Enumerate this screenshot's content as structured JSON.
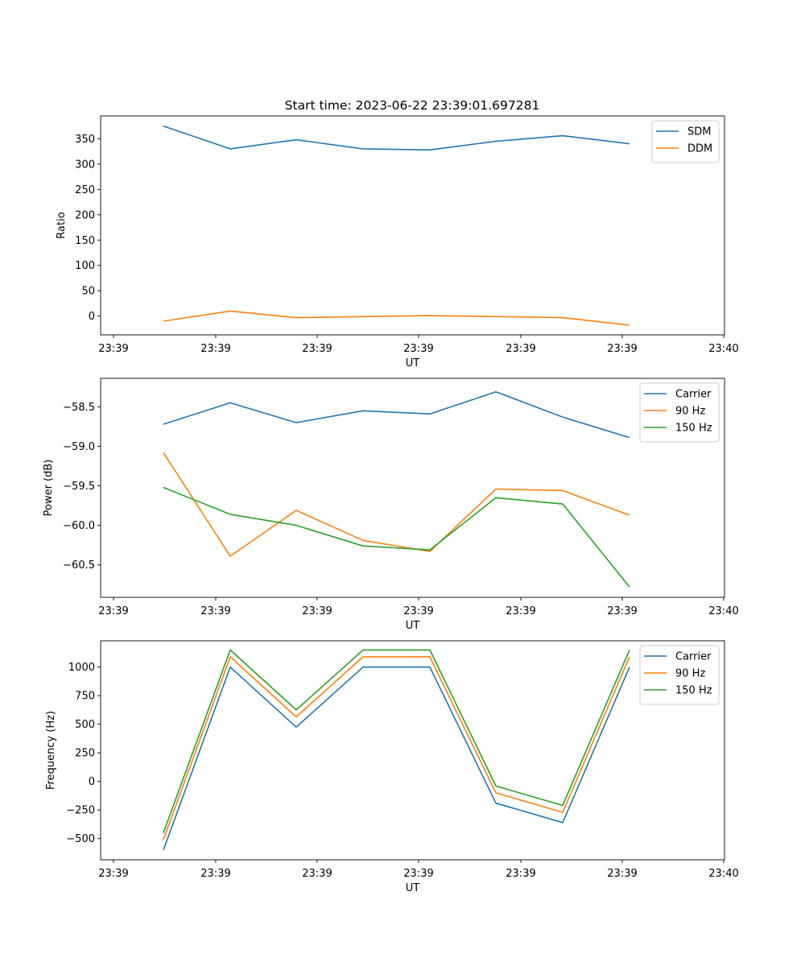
{
  "figure": {
    "title": "Start time: 2023-06-22 23:39:01.697281"
  },
  "chart_data": [
    {
      "type": "line",
      "title": "Start time: 2023-06-22 23:39:01.697281",
      "xlabel": "UT",
      "ylabel": "Ratio",
      "x_tick_labels": [
        "23:39",
        "23:39",
        "23:39",
        "23:39",
        "23:39",
        "23:39",
        "23:40"
      ],
      "y_ticks": [
        0,
        50,
        100,
        150,
        200,
        250,
        300,
        350
      ],
      "ylim": [
        -37,
        395
      ],
      "grid": false,
      "legend_position": "top-right",
      "series": [
        {
          "name": "SDM",
          "color": "#1f77b4",
          "values": [
            375,
            330,
            348,
            330,
            328,
            345,
            356,
            340
          ]
        },
        {
          "name": "DDM",
          "color": "#ff7f0e",
          "values": [
            -10,
            10,
            -3,
            -1,
            1,
            -1,
            -3,
            -18
          ]
        }
      ]
    },
    {
      "type": "line",
      "xlabel": "UT",
      "ylabel": "Power (dB)",
      "x_tick_labels": [
        "23:39",
        "23:39",
        "23:39",
        "23:39",
        "23:39",
        "23:39",
        "23:40"
      ],
      "y_ticks": [
        -60.5,
        -60.0,
        -59.5,
        -59.0,
        -58.5
      ],
      "y_tick_labels": [
        "−60.5",
        "−60.0",
        "−59.5",
        "−59.0",
        "−58.5"
      ],
      "ylim": [
        -60.91,
        -58.14
      ],
      "grid": false,
      "legend_position": "top-right",
      "series": [
        {
          "name": "Carrier",
          "color": "#1f77b4",
          "values": [
            -58.72,
            -58.45,
            -58.7,
            -58.55,
            -58.59,
            -58.31,
            -58.63,
            -58.89
          ]
        },
        {
          "name": "90 Hz",
          "color": "#ff7f0e",
          "values": [
            -59.08,
            -60.39,
            -59.81,
            -60.19,
            -60.33,
            -59.54,
            -59.56,
            -59.87
          ]
        },
        {
          "name": "150 Hz",
          "color": "#2ca02c",
          "values": [
            -59.52,
            -59.86,
            -60.0,
            -60.26,
            -60.31,
            -59.65,
            -59.73,
            -60.78
          ]
        }
      ]
    },
    {
      "type": "line",
      "xlabel": "UT",
      "ylabel": "Frequency (Hz)",
      "x_tick_labels": [
        "23:39",
        "23:39",
        "23:39",
        "23:39",
        "23:39",
        "23:39",
        "23:40"
      ],
      "y_ticks": [
        -500,
        -250,
        0,
        250,
        500,
        750,
        1000
      ],
      "y_tick_labels": [
        "−500",
        "−250",
        "0",
        "250",
        "500",
        "750",
        "1000"
      ],
      "ylim": [
        -685,
        1230
      ],
      "grid": false,
      "legend_position": "top-right",
      "series": [
        {
          "name": "Carrier",
          "color": "#1f77b4",
          "values": [
            -600,
            1000,
            475,
            1000,
            1000,
            -190,
            -360,
            1000
          ]
        },
        {
          "name": "90 Hz",
          "color": "#ff7f0e",
          "values": [
            -510,
            1090,
            565,
            1090,
            1090,
            -100,
            -270,
            1090
          ]
        },
        {
          "name": "150 Hz",
          "color": "#2ca02c",
          "values": [
            -450,
            1150,
            625,
            1150,
            1150,
            -40,
            -210,
            1150
          ]
        }
      ]
    }
  ]
}
